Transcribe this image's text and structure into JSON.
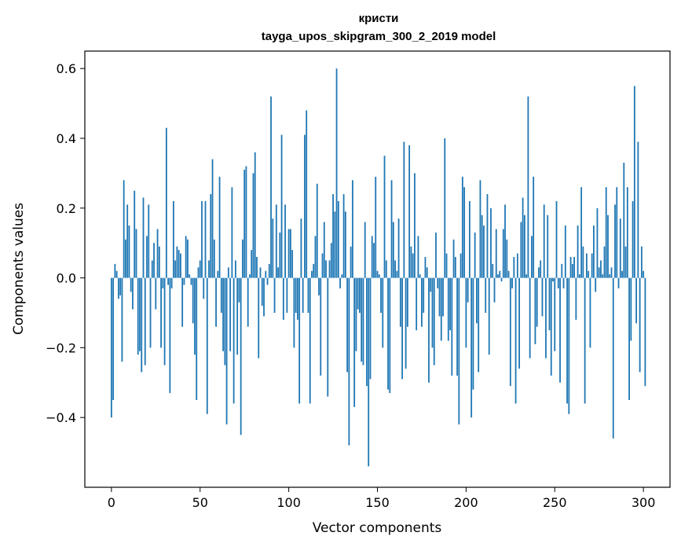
{
  "chart_data": {
    "type": "bar",
    "title_line1": "кристи",
    "title_line2": "tayga_upos_skipgram_300_2_2019 model",
    "xlabel": "Vector components",
    "ylabel": "Components values",
    "xlim": [
      -15,
      315
    ],
    "ylim": [
      -0.6,
      0.65
    ],
    "xticks": [
      0,
      50,
      100,
      150,
      200,
      250,
      300
    ],
    "xtick_labels": [
      "0",
      "50",
      "100",
      "150",
      "200",
      "250",
      "300"
    ],
    "yticks": [
      -0.4,
      -0.2,
      0.0,
      0.2,
      0.4,
      0.6
    ],
    "ytick_labels": [
      "−0.4",
      "−0.2",
      "0.0",
      "0.2",
      "0.4",
      "0.6"
    ],
    "bar_color": "#1f77b4",
    "values": [
      -0.4,
      -0.35,
      0.04,
      0.02,
      -0.06,
      -0.05,
      -0.24,
      0.28,
      0.11,
      0.21,
      0.15,
      -0.04,
      -0.09,
      0.25,
      0.14,
      -0.22,
      -0.21,
      -0.27,
      0.23,
      -0.25,
      0.12,
      0.21,
      -0.2,
      0.05,
      0.1,
      -0.09,
      0.14,
      0.09,
      -0.2,
      -0.03,
      -0.25,
      0.43,
      -0.02,
      -0.33,
      -0.03,
      0.22,
      0.05,
      0.09,
      0.08,
      0.07,
      -0.14,
      -0.02,
      0.12,
      0.11,
      0.01,
      -0.02,
      -0.13,
      -0.22,
      -0.35,
      0.03,
      0.05,
      0.22,
      -0.06,
      0.22,
      -0.39,
      0.05,
      0.24,
      0.34,
      0.11,
      -0.14,
      0.02,
      0.29,
      -0.1,
      -0.21,
      -0.25,
      -0.42,
      0.03,
      -0.21,
      0.26,
      -0.36,
      0.05,
      -0.22,
      -0.07,
      -0.45,
      0.11,
      0.31,
      0.32,
      -0.14,
      0.01,
      0.08,
      0.3,
      0.36,
      0.06,
      -0.23,
      0.03,
      -0.08,
      -0.11,
      0.02,
      -0.02,
      0.04,
      0.52,
      0.17,
      -0.1,
      0.21,
      0.03,
      0.13,
      0.41,
      -0.12,
      0.21,
      -0.1,
      0.14,
      0.14,
      0.08,
      -0.2,
      -0.1,
      -0.12,
      -0.36,
      0.17,
      -0.1,
      0.41,
      0.48,
      -0.1,
      -0.36,
      0.02,
      0.04,
      0.12,
      0.27,
      -0.05,
      -0.28,
      0.07,
      0.16,
      0.05,
      -0.34,
      0.05,
      0.1,
      0.24,
      0.19,
      0.6,
      0.22,
      -0.03,
      0.01,
      0.24,
      0.19,
      -0.27,
      -0.48,
      0.09,
      0.28,
      -0.37,
      -0.21,
      -0.09,
      -0.1,
      -0.24,
      -0.25,
      0.16,
      -0.31,
      -0.54,
      -0.29,
      0.12,
      0.1,
      0.29,
      0.02,
      0.01,
      -0.1,
      -0.2,
      0.35,
      0.05,
      -0.32,
      -0.33,
      0.28,
      0.16,
      0.05,
      0.02,
      0.17,
      -0.14,
      -0.29,
      0.39,
      -0.26,
      -0.14,
      0.38,
      0.09,
      0.07,
      0.3,
      -0.15,
      0.12,
      0.01,
      -0.14,
      -0.1,
      0.06,
      0.03,
      -0.3,
      -0.04,
      -0.2,
      -0.25,
      0.13,
      -0.03,
      -0.11,
      -0.18,
      -0.11,
      0.4,
      0.07,
      -0.18,
      -0.15,
      -0.28,
      0.11,
      0.06,
      -0.28,
      -0.42,
      0.07,
      0.29,
      0.26,
      -0.2,
      -0.07,
      0.22,
      -0.4,
      -0.32,
      0.13,
      -0.13,
      -0.27,
      0.28,
      0.18,
      0.15,
      -0.1,
      0.24,
      -0.22,
      0.2,
      0.04,
      -0.07,
      0.14,
      0.01,
      0.02,
      -0.01,
      0.14,
      0.21,
      0.11,
      0.02,
      -0.31,
      -0.03,
      0.06,
      -0.36,
      0.07,
      -0.26,
      0.16,
      0.23,
      0.18,
      0.01,
      0.52,
      -0.23,
      0.12,
      0.29,
      -0.19,
      -0.14,
      0.03,
      0.05,
      -0.11,
      0.21,
      -0.23,
      0.18,
      -0.15,
      -0.28,
      -0.01,
      -0.21,
      0.22,
      -0.03,
      -0.3,
      0.04,
      -0.03,
      0.15,
      -0.36,
      -0.39,
      0.06,
      0.04,
      0.06,
      -0.12,
      0.15,
      0.01,
      0.26,
      0.09,
      -0.36,
      0.07,
      0.02,
      -0.2,
      0.07,
      0.15,
      -0.04,
      0.2,
      0.03,
      0.05,
      0.01,
      0.09,
      0.26,
      0.18,
      0.01,
      0.03,
      -0.46,
      0.21,
      0.26,
      -0.03,
      0.17,
      0.02,
      0.33,
      0.09,
      0.26,
      -0.35,
      -0.18,
      0.22,
      0.55,
      -0.13,
      0.39,
      -0.27,
      0.09,
      0.02,
      -0.31
    ]
  }
}
